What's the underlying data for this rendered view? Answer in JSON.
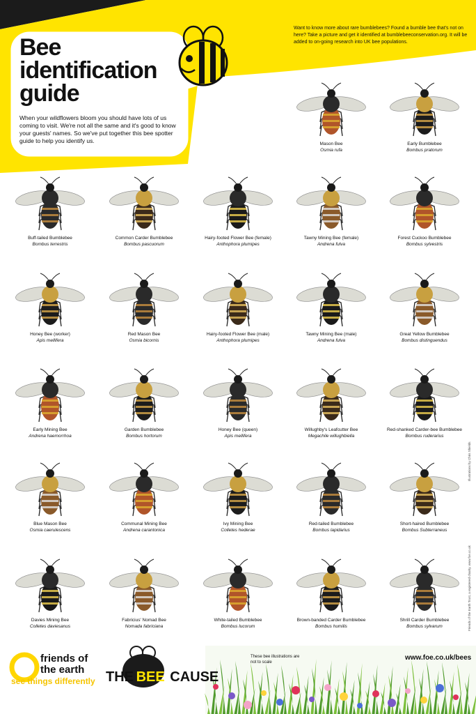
{
  "header": {
    "title": "Bee identification guide",
    "intro": "When your wildflowers bloom you should have lots of us coming to visit. We're not all the same and it's good to know your guests' names. So we've put together this bee spotter guide to help you identify us.",
    "info": "Want to know more about rare bumblebees? Found a bumble bee that's not on here? Take a picture and get it identified at bumblebeeconservation.org. It will be added to on-going research into UK bee populations."
  },
  "bees": [
    {
      "name": "Mason Bee",
      "latin": "Osmia rufa"
    },
    {
      "name": "Early Bumblebee",
      "latin": "Bombus pratorum"
    },
    {
      "name": "Buff-tailed Bumblebee",
      "latin": "Bombus terrestris"
    },
    {
      "name": "Common Carder Bumblebee",
      "latin": "Bombus pascuorum"
    },
    {
      "name": "Hairy-footed Flower Bee (female)",
      "latin": "Anthophora plumipes"
    },
    {
      "name": "Tawny Mining Bee (female)",
      "latin": "Andrena fulva"
    },
    {
      "name": "Forest Cuckoo Bumblebee",
      "latin": "Bombus sylvestris"
    },
    {
      "name": "Honey Bee (worker)",
      "latin": "Apis mellifera"
    },
    {
      "name": "Red Mason Bee",
      "latin": "Osmia bicornis"
    },
    {
      "name": "Hairy-footed Flower Bee (male)",
      "latin": "Anthophora plumipes"
    },
    {
      "name": "Tawny Mining Bee (male)",
      "latin": "Andrena fulva"
    },
    {
      "name": "Great Yellow Bumblebee",
      "latin": "Bombus distinguendus"
    },
    {
      "name": "Early Mining Bee",
      "latin": "Andrena haemorrhoa"
    },
    {
      "name": "Garden Bumblebee",
      "latin": "Bombus hortorum"
    },
    {
      "name": "Honey Bee (queen)",
      "latin": "Apis mellifera"
    },
    {
      "name": "Willughby's Leafcutter Bee",
      "latin": "Megachile willughbiella"
    },
    {
      "name": "Red-shanked Carder-bee Bumblebee",
      "latin": "Bombus ruderarius"
    },
    {
      "name": "Blue Mason Bee",
      "latin": "Osmia caerulescens"
    },
    {
      "name": "Communal Mining Bee",
      "latin": "Andrena carantonica"
    },
    {
      "name": "Ivy Mining Bee",
      "latin": "Colletes hederae"
    },
    {
      "name": "Red-tailed Bumblebee",
      "latin": "Bombus lapidarius"
    },
    {
      "name": "Short-haired Bumblebee",
      "latin": "Bombus Subterraneus"
    },
    {
      "name": "Davies Mining Bee",
      "latin": "Colletes daviesanus"
    },
    {
      "name": "Fabricius' Nomad Bee",
      "latin": "Nomada fabriciana"
    },
    {
      "name": "White-tailed Bumblebee",
      "latin": "Bombus lucorum"
    },
    {
      "name": "Brown-banded Carder Bumblebee",
      "latin": "Bombus humilis"
    },
    {
      "name": "Shrill Carder Bumblebee",
      "latin": "Bombus sylvarum"
    }
  ],
  "side_notes": [
    "Illustrations by Chris Shields",
    "Friends of the Earth Trust, a registered charity. www.foe.co.uk"
  ],
  "footer": {
    "brand": "friends of the earth",
    "tagline": "see things differently",
    "campaign": [
      "THE",
      "BEE",
      "CAUSE"
    ],
    "scale_note": "These bee illustrations are not to scale",
    "url": "www.foe.co.uk/bees"
  }
}
